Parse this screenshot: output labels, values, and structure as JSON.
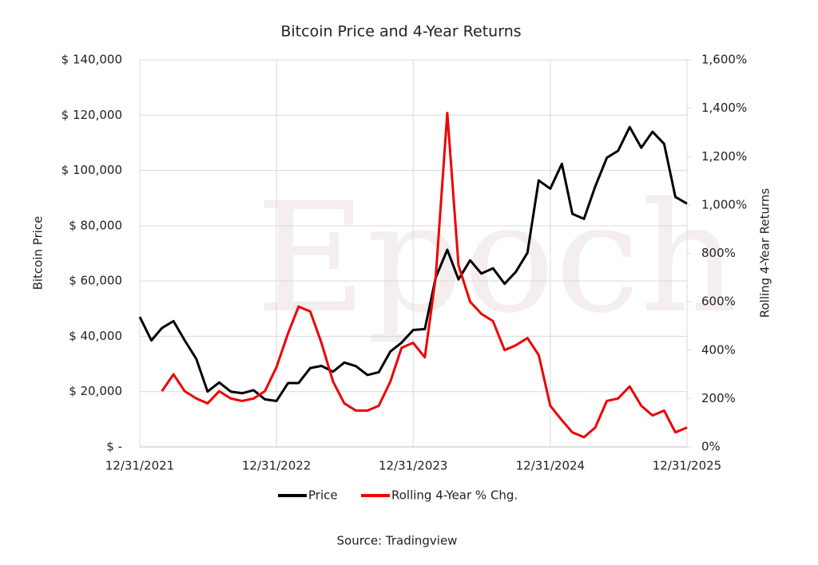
{
  "chart_data": {
    "type": "line",
    "title": "Bitcoin Price and 4-Year Returns",
    "watermark": "Epoch",
    "y_label": "Bitcoin Price",
    "y2_label": "Rolling 4-Year Returns",
    "source": "Source: Tradingview",
    "x": [
      "12/31/2021",
      "1/31/2022",
      "2/28/2022",
      "3/31/2022",
      "4/30/2022",
      "5/31/2022",
      "6/30/2022",
      "7/31/2022",
      "8/31/2022",
      "9/30/2022",
      "10/31/2022",
      "11/30/2022",
      "12/31/2022",
      "1/31/2023",
      "2/28/2023",
      "3/31/2023",
      "4/30/2023",
      "5/31/2023",
      "6/30/2023",
      "7/31/2023",
      "8/31/2023",
      "9/30/2023",
      "10/31/2023",
      "11/30/2023",
      "12/31/2023",
      "1/31/2024",
      "2/29/2024",
      "3/31/2024",
      "4/30/2024",
      "5/31/2024",
      "6/30/2024",
      "7/31/2024",
      "8/31/2024",
      "9/30/2024",
      "10/31/2024",
      "11/30/2024",
      "12/31/2024",
      "1/31/2025",
      "2/28/2025",
      "3/31/2025",
      "4/30/2025",
      "5/31/2025",
      "6/30/2025",
      "7/31/2025",
      "8/31/2025",
      "9/30/2025",
      "10/31/2025",
      "11/30/2025",
      "12/31/2025"
    ],
    "xlim": [
      "12/31/2021",
      "12/31/2025"
    ],
    "xticks": [
      "12/31/2021",
      "12/31/2022",
      "12/31/2023",
      "12/31/2024",
      "12/31/2025"
    ],
    "ylim": [
      0,
      140000
    ],
    "yticks": [
      {
        "value": 0,
        "label": "$ -"
      },
      {
        "value": 20000,
        "label": "$ 20,000"
      },
      {
        "value": 40000,
        "label": "$ 40,000"
      },
      {
        "value": 60000,
        "label": "$ 60,000"
      },
      {
        "value": 80000,
        "label": "$ 80,000"
      },
      {
        "value": 100000,
        "label": "$ 100,000"
      },
      {
        "value": 120000,
        "label": "$ 120,000"
      },
      {
        "value": 140000,
        "label": "$ 140,000"
      }
    ],
    "y2lim": [
      0,
      1600
    ],
    "y2ticks": [
      {
        "value": 0,
        "label": "0%"
      },
      {
        "value": 200,
        "label": "200%"
      },
      {
        "value": 400,
        "label": "400%"
      },
      {
        "value": 600,
        "label": "600%"
      },
      {
        "value": 800,
        "label": "800%"
      },
      {
        "value": 1000,
        "label": "1,000%"
      },
      {
        "value": 1200,
        "label": "1,200%"
      },
      {
        "value": 1400,
        "label": "1,400%"
      },
      {
        "value": 1600,
        "label": "1,600%"
      }
    ],
    "grid": true,
    "series": [
      {
        "name": "Price",
        "color": "#000000",
        "values": [
          47000,
          38500,
          43000,
          45500,
          38500,
          31800,
          20000,
          23300,
          20000,
          19400,
          20500,
          17200,
          16600,
          23100,
          23100,
          28500,
          29300,
          27200,
          30500,
          29200,
          26000,
          27000,
          34500,
          37700,
          42300,
          42600,
          61200,
          71300,
          60600,
          67500,
          62700,
          64600,
          59000,
          63300,
          70200,
          96400,
          93400,
          102400,
          84300,
          82500,
          94200,
          104600,
          107100,
          115700,
          108200,
          114000,
          109600,
          90400,
          88000
        ]
      },
      {
        "name": "Rolling 4-Year % Chg.",
        "color": "#ee0000",
        "axis": "y2",
        "values": [
          null,
          null,
          230,
          300,
          230,
          200,
          180,
          230,
          200,
          190,
          200,
          230,
          330,
          470,
          580,
          560,
          430,
          270,
          180,
          150,
          150,
          170,
          270,
          410,
          430,
          370,
          700,
          1380,
          750,
          600,
          550,
          520,
          400,
          420,
          450,
          380,
          170,
          110,
          60,
          40,
          80,
          190,
          200,
          250,
          170,
          130,
          150,
          60,
          80
        ]
      }
    ]
  }
}
